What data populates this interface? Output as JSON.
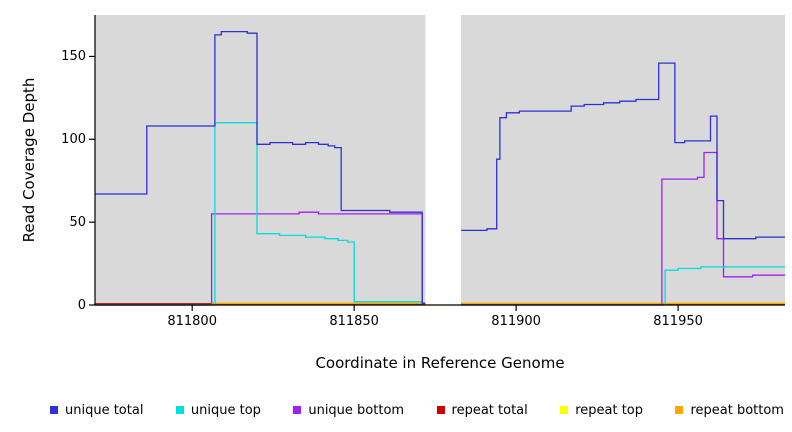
{
  "chart_data": {
    "type": "line",
    "step_style": "post",
    "title": "",
    "xlabel": "Coordinate in Reference Genome",
    "ylabel": "Read Coverage Depth",
    "xlim": [
      811770,
      811983
    ],
    "ylim": [
      0,
      175
    ],
    "xticks": [
      811800,
      811850,
      811900,
      811950
    ],
    "yticks": [
      0,
      50,
      100,
      150
    ],
    "grid": false,
    "legend_position": "bottom",
    "panel_bg": "#d9d9d9",
    "gap_region": [
      811872,
      811883
    ],
    "series": [
      {
        "name": "repeat total",
        "color": "#cc0000",
        "points": [
          [
            811770,
            0.7
          ]
        ]
      },
      {
        "name": "repeat top",
        "color": "#ffff00",
        "points": [
          [
            811770,
            0
          ]
        ]
      },
      {
        "name": "repeat bottom",
        "color": "#ffa500",
        "points": [
          [
            811770,
            0
          ],
          [
            811806,
            1
          ]
        ]
      },
      {
        "name": "unique bottom",
        "color": "#a020f0",
        "points": [
          [
            811770,
            0
          ],
          [
            811806,
            55
          ],
          [
            811833,
            56
          ],
          [
            811839,
            55
          ],
          [
            811869,
            55
          ],
          [
            811871,
            1
          ],
          [
            811883,
            0
          ],
          [
            811944,
            0
          ],
          [
            811945,
            76
          ],
          [
            811956,
            77
          ],
          [
            811958,
            92
          ],
          [
            811961,
            92
          ],
          [
            811962,
            40
          ],
          [
            811964,
            17
          ],
          [
            811973,
            18
          ]
        ]
      },
      {
        "name": "unique top",
        "color": "#00dede",
        "points": [
          [
            811770,
            0
          ],
          [
            811807,
            110
          ],
          [
            811819,
            110
          ],
          [
            811820,
            43
          ],
          [
            811827,
            42
          ],
          [
            811835,
            41
          ],
          [
            811841,
            40
          ],
          [
            811845,
            39
          ],
          [
            811848,
            38
          ],
          [
            811850,
            2
          ],
          [
            811860,
            2
          ],
          [
            811871,
            1
          ],
          [
            811883,
            0
          ],
          [
            811944,
            0
          ],
          [
            811946,
            21
          ],
          [
            811950,
            22
          ],
          [
            811957,
            23
          ]
        ]
      },
      {
        "name": "unique total",
        "color": "#3030d2",
        "points": [
          [
            811770,
            67
          ],
          [
            811786,
            108
          ],
          [
            811807,
            163
          ],
          [
            811809,
            165
          ],
          [
            811817,
            164
          ],
          [
            811820,
            97
          ],
          [
            811824,
            98
          ],
          [
            811831,
            97
          ],
          [
            811835,
            98
          ],
          [
            811839,
            97
          ],
          [
            811842,
            96
          ],
          [
            811844,
            95
          ],
          [
            811846,
            57
          ],
          [
            811857,
            57
          ],
          [
            811861,
            56
          ],
          [
            811871,
            1
          ],
          [
            811882,
            45
          ],
          [
            811891,
            46
          ],
          [
            811894,
            88
          ],
          [
            811895,
            113
          ],
          [
            811897,
            116
          ],
          [
            811901,
            117
          ],
          [
            811917,
            120
          ],
          [
            811921,
            121
          ],
          [
            811927,
            122
          ],
          [
            811932,
            123
          ],
          [
            811937,
            124
          ],
          [
            811944,
            146
          ],
          [
            811949,
            98
          ],
          [
            811952,
            99
          ],
          [
            811960,
            114
          ],
          [
            811962,
            63
          ],
          [
            811964,
            40
          ],
          [
            811974,
            41
          ]
        ]
      }
    ],
    "legend": [
      {
        "label": "unique total",
        "color": "#3030d2"
      },
      {
        "label": "unique top",
        "color": "#00dede"
      },
      {
        "label": "unique bottom",
        "color": "#a020f0"
      },
      {
        "label": "repeat total",
        "color": "#cc0000"
      },
      {
        "label": "repeat top",
        "color": "#ffff00"
      },
      {
        "label": "repeat bottom",
        "color": "#ffa500"
      }
    ]
  }
}
